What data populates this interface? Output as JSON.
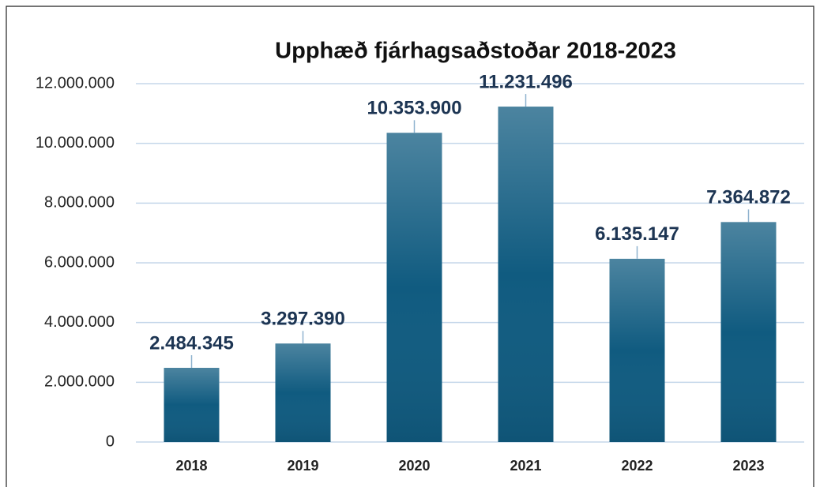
{
  "chart_data": {
    "type": "bar",
    "title": "Upphæð fjárhagsaðstoðar 2018-2023",
    "categories": [
      "2018",
      "2019",
      "2020",
      "2021",
      "2022",
      "2023"
    ],
    "values": [
      2484345,
      3297390,
      10353900,
      11231496,
      6135147,
      7364872
    ],
    "value_labels": [
      "2.484.345",
      "3.297.390",
      "10.353.900",
      "11.231.496",
      "6.135.147",
      "7.364.872"
    ],
    "color": "#105b80",
    "ylim": [
      0,
      12000000
    ],
    "yticks": [
      0,
      {
        "value": 2000000,
        "label": "2.000.000"
      },
      {
        "value": 4000000,
        "label": "4.000.000"
      },
      {
        "value": 6000000,
        "label": "6.000.000"
      },
      {
        "value": 8000000,
        "label": "8.000.000"
      },
      {
        "value": 10000000,
        "label": "10.000.000"
      },
      {
        "value": 12000000,
        "label": "12.000.000"
      }
    ],
    "grid": true
  }
}
